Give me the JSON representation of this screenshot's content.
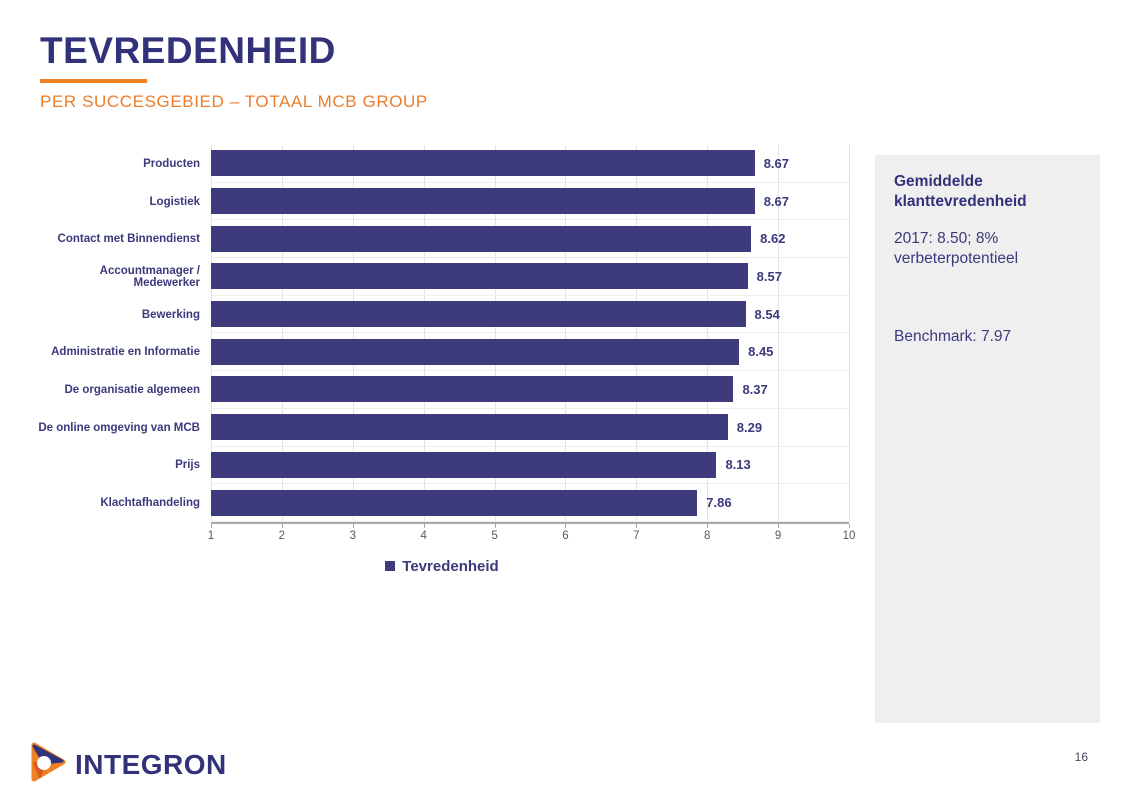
{
  "slide": {
    "title": "TEVREDENHEID",
    "subtitle": "PER SUCCESGEBIED – TOTAAL MCB GROUP",
    "page_number": "16"
  },
  "chart_data": {
    "type": "bar",
    "orientation": "horizontal",
    "categories": [
      "Producten",
      "Logistiek",
      "Contact met Binnendienst",
      "Accountmanager / Medewerker",
      "Bewerking",
      "Administratie en Informatie",
      "De organisatie algemeen",
      "De online omgeving van MCB",
      "Prijs",
      "Klachtafhandeling"
    ],
    "series": [
      {
        "name": "Tevredenheid",
        "values": [
          8.67,
          8.67,
          8.62,
          8.57,
          8.54,
          8.45,
          8.37,
          8.29,
          8.13,
          7.86
        ]
      }
    ],
    "x_ticks": [
      1,
      2,
      3,
      4,
      5,
      6,
      7,
      8,
      9,
      10
    ],
    "xlim": [
      1,
      10
    ],
    "grid": true,
    "legend_position": "bottom",
    "bar_color": "#3E3B7D"
  },
  "sidebar": {
    "title": "Gemiddelde klanttevredenheid",
    "body": "2017: 8.50; 8% verbeterpotentieel",
    "benchmark": "Benchmark: 7.97"
  },
  "footer": {
    "logo_text": "INTEGRON"
  },
  "colors": {
    "brand_navy": "#32327B",
    "brand_orange": "#ED7D2B",
    "bar_navy": "#3E3B7D",
    "sidebar_bg": "#F0EFEF"
  }
}
